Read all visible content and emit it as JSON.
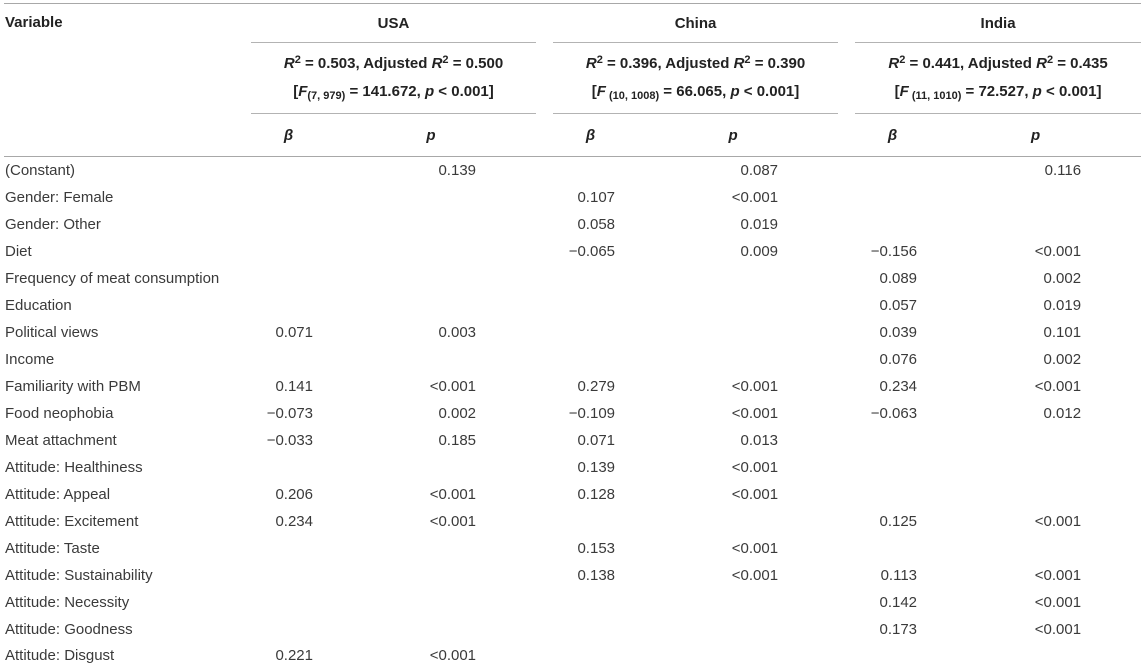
{
  "table": {
    "variable_header": "Variable",
    "subheaders": {
      "beta": "β",
      "p": "p"
    },
    "countries": [
      {
        "name": "USA",
        "r2_segments": [
          {
            "t": "R",
            "cls": "it"
          },
          {
            "t": "2",
            "cls": "sup"
          },
          {
            "t": " = 0.503, Adjusted ",
            "cls": ""
          },
          {
            "t": "R",
            "cls": "it"
          },
          {
            "t": "2",
            "cls": "sup"
          },
          {
            "t": " = 0.500",
            "cls": ""
          }
        ],
        "f_segments": [
          {
            "t": "[",
            "cls": ""
          },
          {
            "t": "F",
            "cls": "it"
          },
          {
            "t": "(7, 979)",
            "cls": "sub-s"
          },
          {
            "t": " = 141.672, ",
            "cls": ""
          },
          {
            "t": "p",
            "cls": "it"
          },
          {
            "t": " < 0.001]",
            "cls": ""
          }
        ]
      },
      {
        "name": "China",
        "r2_segments": [
          {
            "t": "R",
            "cls": "it"
          },
          {
            "t": "2",
            "cls": "sup"
          },
          {
            "t": " = 0.396, Adjusted ",
            "cls": ""
          },
          {
            "t": "R",
            "cls": "it"
          },
          {
            "t": "2",
            "cls": "sup"
          },
          {
            "t": " = 0.390",
            "cls": ""
          }
        ],
        "f_segments": [
          {
            "t": "[",
            "cls": ""
          },
          {
            "t": "F",
            "cls": "it"
          },
          {
            "t": " (10, 1008)",
            "cls": "sub-s"
          },
          {
            "t": " = 66.065, ",
            "cls": ""
          },
          {
            "t": "p",
            "cls": "it"
          },
          {
            "t": " < 0.001]",
            "cls": ""
          }
        ]
      },
      {
        "name": "India",
        "r2_segments": [
          {
            "t": "R",
            "cls": "it"
          },
          {
            "t": "2",
            "cls": "sup"
          },
          {
            "t": " = 0.441, Adjusted ",
            "cls": ""
          },
          {
            "t": "R",
            "cls": "it"
          },
          {
            "t": "2",
            "cls": "sup"
          },
          {
            "t": " = 0.435",
            "cls": ""
          }
        ],
        "f_segments": [
          {
            "t": "[",
            "cls": ""
          },
          {
            "t": "F",
            "cls": "it"
          },
          {
            "t": " (11, 1010)",
            "cls": "sub-s"
          },
          {
            "t": " = 72.527, ",
            "cls": ""
          },
          {
            "t": "p",
            "cls": "it"
          },
          {
            "t": " < 0.001]",
            "cls": ""
          }
        ]
      }
    ],
    "rows": [
      {
        "label": "(Constant)",
        "values": [
          "",
          "0.139",
          "",
          "0.087",
          "",
          "0.116"
        ]
      },
      {
        "label": "Gender: Female",
        "values": [
          "",
          "",
          "0.107",
          "<0.001",
          "",
          ""
        ]
      },
      {
        "label": "Gender: Other",
        "values": [
          "",
          "",
          "0.058",
          "0.019",
          "",
          ""
        ]
      },
      {
        "label": "Diet",
        "values": [
          "",
          "",
          "−0.065",
          "0.009",
          "−0.156",
          "<0.001"
        ]
      },
      {
        "label": "Frequency of meat consumption",
        "values": [
          "",
          "",
          "",
          "",
          "0.089",
          "0.002"
        ]
      },
      {
        "label": "Education",
        "values": [
          "",
          "",
          "",
          "",
          "0.057",
          "0.019"
        ]
      },
      {
        "label": "Political views",
        "values": [
          "0.071",
          "0.003",
          "",
          "",
          "0.039",
          "0.101"
        ]
      },
      {
        "label": "Income",
        "values": [
          "",
          "",
          "",
          "",
          "0.076",
          "0.002"
        ]
      },
      {
        "label": "Familiarity with PBM",
        "values": [
          "0.141",
          "<0.001",
          "0.279",
          "<0.001",
          "0.234",
          "<0.001"
        ]
      },
      {
        "label": "Food neophobia",
        "values": [
          "−0.073",
          "0.002",
          "−0.109",
          "<0.001",
          "−0.063",
          "0.012"
        ]
      },
      {
        "label": "Meat attachment",
        "values": [
          "−0.033",
          "0.185",
          "0.071",
          "0.013",
          "",
          ""
        ]
      },
      {
        "label": "Attitude: Healthiness",
        "values": [
          "",
          "",
          "0.139",
          "<0.001",
          "",
          ""
        ]
      },
      {
        "label": "Attitude: Appeal",
        "values": [
          "0.206",
          "<0.001",
          "0.128",
          "<0.001",
          "",
          ""
        ]
      },
      {
        "label": "Attitude: Excitement",
        "values": [
          "0.234",
          "<0.001",
          "",
          "",
          "0.125",
          "<0.001"
        ]
      },
      {
        "label": "Attitude: Taste",
        "values": [
          "",
          "",
          "0.153",
          "<0.001",
          "",
          ""
        ]
      },
      {
        "label": "Attitude: Sustainability",
        "values": [
          "",
          "",
          "0.138",
          "<0.001",
          "0.113",
          "<0.001"
        ]
      },
      {
        "label": "Attitude: Necessity",
        "values": [
          "",
          "",
          "",
          "",
          "0.142",
          "<0.001"
        ]
      },
      {
        "label": "Attitude: Goodness",
        "values": [
          "",
          "",
          "",
          "",
          "0.173",
          "<0.001"
        ]
      },
      {
        "label": "Attitude: Disgust",
        "values": [
          "0.221",
          "<0.001",
          "",
          "",
          "",
          ""
        ]
      }
    ]
  }
}
